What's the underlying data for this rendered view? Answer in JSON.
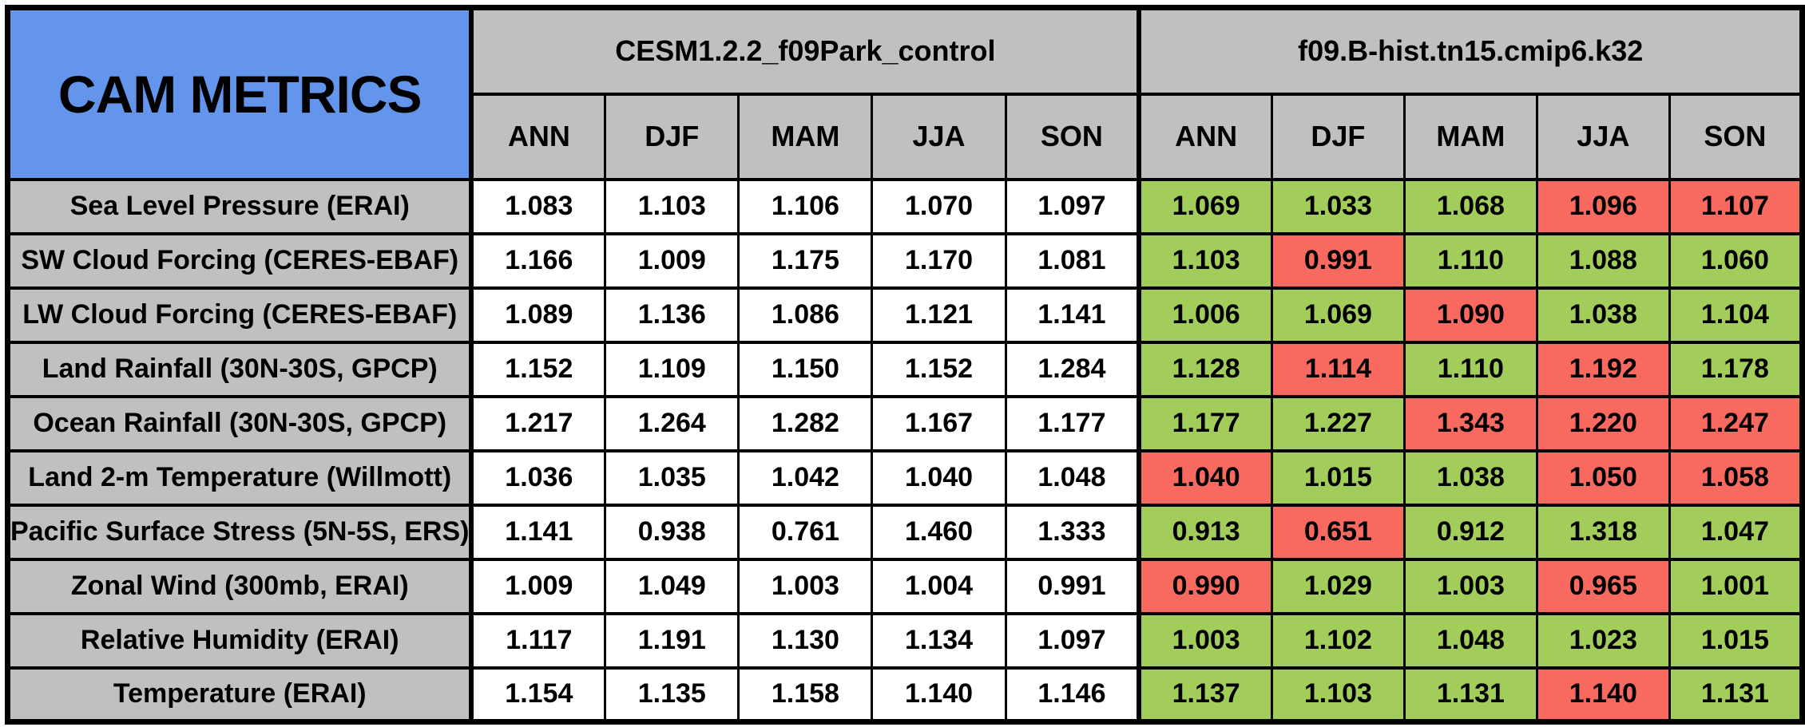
{
  "colors": {
    "header_blue": "#6495ED",
    "header_gray": "#C0C0C0",
    "better_green": "#A2CD5A",
    "worse_red": "#F8695F",
    "control_bg": "#FFFFFF",
    "border_black": "#000000"
  },
  "chart_data": {
    "type": "table",
    "title": "CAM METRICS",
    "column_groups": [
      {
        "name": "CESM1.2.2_f09Park_control"
      },
      {
        "name": "f09.B-hist.tn15.cmip6.k32"
      }
    ],
    "season_labels": [
      "ANN",
      "DJF",
      "MAM",
      "JJA",
      "SON"
    ],
    "rows": [
      {
        "label": "Sea Level Pressure (ERAI)",
        "control": [
          "1.083",
          "1.103",
          "1.106",
          "1.070",
          "1.097"
        ],
        "test": [
          {
            "value": "1.069",
            "status": "green"
          },
          {
            "value": "1.033",
            "status": "green"
          },
          {
            "value": "1.068",
            "status": "green"
          },
          {
            "value": "1.096",
            "status": "red"
          },
          {
            "value": "1.107",
            "status": "red"
          }
        ]
      },
      {
        "label": "SW Cloud Forcing (CERES-EBAF)",
        "control": [
          "1.166",
          "1.009",
          "1.175",
          "1.170",
          "1.081"
        ],
        "test": [
          {
            "value": "1.103",
            "status": "green"
          },
          {
            "value": "0.991",
            "status": "red"
          },
          {
            "value": "1.110",
            "status": "green"
          },
          {
            "value": "1.088",
            "status": "green"
          },
          {
            "value": "1.060",
            "status": "green"
          }
        ]
      },
      {
        "label": "LW Cloud Forcing (CERES-EBAF)",
        "control": [
          "1.089",
          "1.136",
          "1.086",
          "1.121",
          "1.141"
        ],
        "test": [
          {
            "value": "1.006",
            "status": "green"
          },
          {
            "value": "1.069",
            "status": "green"
          },
          {
            "value": "1.090",
            "status": "red"
          },
          {
            "value": "1.038",
            "status": "green"
          },
          {
            "value": "1.104",
            "status": "green"
          }
        ]
      },
      {
        "label": "Land Rainfall (30N-30S, GPCP)",
        "control": [
          "1.152",
          "1.109",
          "1.150",
          "1.152",
          "1.284"
        ],
        "test": [
          {
            "value": "1.128",
            "status": "green"
          },
          {
            "value": "1.114",
            "status": "red"
          },
          {
            "value": "1.110",
            "status": "green"
          },
          {
            "value": "1.192",
            "status": "red"
          },
          {
            "value": "1.178",
            "status": "green"
          }
        ]
      },
      {
        "label": "Ocean Rainfall (30N-30S, GPCP)",
        "control": [
          "1.217",
          "1.264",
          "1.282",
          "1.167",
          "1.177"
        ],
        "test": [
          {
            "value": "1.177",
            "status": "green"
          },
          {
            "value": "1.227",
            "status": "green"
          },
          {
            "value": "1.343",
            "status": "red"
          },
          {
            "value": "1.220",
            "status": "red"
          },
          {
            "value": "1.247",
            "status": "red"
          }
        ]
      },
      {
        "label": "Land 2-m Temperature (Willmott)",
        "control": [
          "1.036",
          "1.035",
          "1.042",
          "1.040",
          "1.048"
        ],
        "test": [
          {
            "value": "1.040",
            "status": "red"
          },
          {
            "value": "1.015",
            "status": "green"
          },
          {
            "value": "1.038",
            "status": "green"
          },
          {
            "value": "1.050",
            "status": "red"
          },
          {
            "value": "1.058",
            "status": "red"
          }
        ]
      },
      {
        "label": "Pacific Surface Stress (5N-5S, ERS)",
        "control": [
          "1.141",
          "0.938",
          "0.761",
          "1.460",
          "1.333"
        ],
        "test": [
          {
            "value": "0.913",
            "status": "green"
          },
          {
            "value": "0.651",
            "status": "red"
          },
          {
            "value": "0.912",
            "status": "green"
          },
          {
            "value": "1.318",
            "status": "green"
          },
          {
            "value": "1.047",
            "status": "green"
          }
        ]
      },
      {
        "label": "Zonal Wind (300mb, ERAI)",
        "control": [
          "1.009",
          "1.049",
          "1.003",
          "1.004",
          "0.991"
        ],
        "test": [
          {
            "value": "0.990",
            "status": "red"
          },
          {
            "value": "1.029",
            "status": "green"
          },
          {
            "value": "1.003",
            "status": "green"
          },
          {
            "value": "0.965",
            "status": "red"
          },
          {
            "value": "1.001",
            "status": "green"
          }
        ]
      },
      {
        "label": "Relative Humidity (ERAI)",
        "control": [
          "1.117",
          "1.191",
          "1.130",
          "1.134",
          "1.097"
        ],
        "test": [
          {
            "value": "1.003",
            "status": "green"
          },
          {
            "value": "1.102",
            "status": "green"
          },
          {
            "value": "1.048",
            "status": "green"
          },
          {
            "value": "1.023",
            "status": "green"
          },
          {
            "value": "1.015",
            "status": "green"
          }
        ]
      },
      {
        "label": "Temperature (ERAI)",
        "control": [
          "1.154",
          "1.135",
          "1.158",
          "1.140",
          "1.146"
        ],
        "test": [
          {
            "value": "1.137",
            "status": "green"
          },
          {
            "value": "1.103",
            "status": "green"
          },
          {
            "value": "1.131",
            "status": "green"
          },
          {
            "value": "1.140",
            "status": "red"
          },
          {
            "value": "1.131",
            "status": "green"
          }
        ]
      }
    ]
  }
}
